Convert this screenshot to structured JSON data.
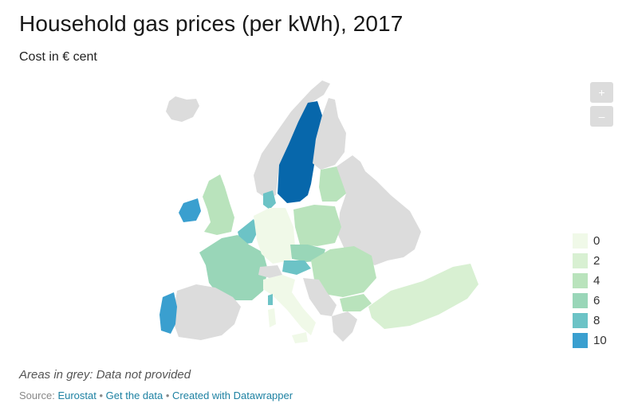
{
  "title": "Household gas prices (per kWh), 2017",
  "subtitle": "Cost in € cent",
  "zoom": {
    "in_label": "+",
    "out_label": "–"
  },
  "legend": [
    {
      "label": "0",
      "color": "#f0f9e8"
    },
    {
      "label": "2",
      "color": "#d8f0d2"
    },
    {
      "label": "4",
      "color": "#b9e3bc"
    },
    {
      "label": "6",
      "color": "#99d6b8"
    },
    {
      "label": "8",
      "color": "#6cc3c6"
    },
    {
      "label": "10",
      "color": "#3a9fcf"
    }
  ],
  "colors": {
    "no_data": "#dcdcdc",
    "highest": "#0767ab"
  },
  "note": "Areas in grey: Data not provided",
  "source": {
    "prefix": "Source:",
    "source_link": "Eurostat",
    "get_data": "Get the data",
    "created_with": "Created with Datawrapper"
  }
}
